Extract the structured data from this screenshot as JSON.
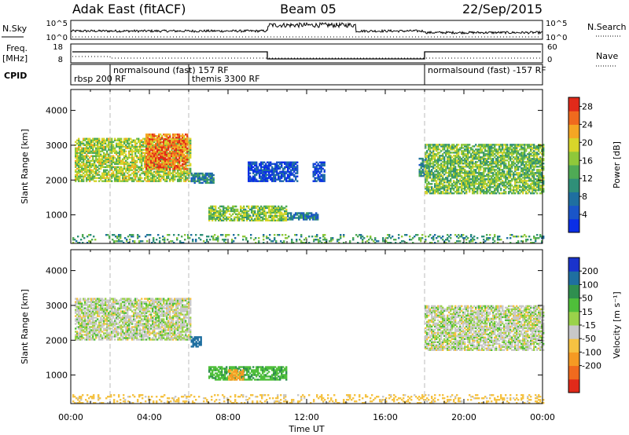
{
  "header": {
    "title": "Adak East (fitACF)",
    "beam": "Beam 05",
    "date": "22/Sep/2015"
  },
  "top_panels": {
    "left_labels": {
      "nsky": "N.Sky",
      "freq": "Freq.",
      "freq_unit": "[MHz]",
      "cpid": "CPID"
    },
    "right_labels": {
      "nsearch": "N.Search",
      "nave": "Nave"
    },
    "noise_ticks_left": [
      "10^5",
      "10^0"
    ],
    "noise_ticks_right": [
      "10^5",
      "10^0"
    ],
    "freq_ticks": [
      "18",
      "8"
    ],
    "nave_ticks": [
      "60",
      "0"
    ],
    "cpid_labels": [
      {
        "text": "rbsp 200 RF",
        "t": 0.0
      },
      {
        "text": "normalsound (fast) 157 RF",
        "t": 2.0
      },
      {
        "text": "themis 3300 RF",
        "t": 6.0
      },
      {
        "text": "normalsound (fast) -157 RF",
        "t": 18.0
      }
    ]
  },
  "chart_data": [
    {
      "type": "heatmap",
      "name": "power",
      "xlabel": "Time UT",
      "ylabel": "Slant Range [km]",
      "xlim": [
        0,
        24
      ],
      "ylim": [
        180,
        4600
      ],
      "x_ticks": [
        "00:00",
        "04:00",
        "08:00",
        "12:00",
        "16:00",
        "20:00",
        "00:00"
      ],
      "y_ticks": [
        1000,
        2000,
        3000,
        4000
      ],
      "colorbar": {
        "label": "Power [dB]",
        "ticks": [
          4,
          8,
          12,
          16,
          20,
          24,
          28
        ],
        "range": [
          0,
          30
        ],
        "colors": [
          "#0a2ee6",
          "#1a55c8",
          "#1f6fa0",
          "#2f8f78",
          "#4faa55",
          "#8fc83a",
          "#d8d52a",
          "#f5a623",
          "#f06a1e",
          "#e02a1a"
        ]
      },
      "regions": [
        {
          "t0": 0.2,
          "t1": 6.1,
          "r0": 1950,
          "r1": 3200,
          "level": 17
        },
        {
          "t0": 3.8,
          "t1": 5.9,
          "r0": 2300,
          "r1": 3300,
          "level": 25
        },
        {
          "t0": 6.1,
          "t1": 7.3,
          "r0": 1900,
          "r1": 2200,
          "level": 8
        },
        {
          "t0": 7.0,
          "t1": 11.0,
          "r0": 820,
          "r1": 1250,
          "level": 16
        },
        {
          "t0": 11.0,
          "t1": 12.6,
          "r0": 850,
          "r1": 1050,
          "level": 8
        },
        {
          "t0": 9.0,
          "t1": 11.5,
          "r0": 1950,
          "r1": 2500,
          "level": 4
        },
        {
          "t0": 12.3,
          "t1": 12.9,
          "r0": 1950,
          "r1": 2500,
          "level": 4
        },
        {
          "t0": 17.7,
          "t1": 18.2,
          "r0": 2100,
          "r1": 2600,
          "level": 10
        },
        {
          "t0": 18.0,
          "t1": 24.0,
          "r0": 1600,
          "r1": 3000,
          "level": 15
        },
        {
          "t0": 0.0,
          "t1": 24.0,
          "r0": 180,
          "r1": 420,
          "level": 12
        }
      ]
    },
    {
      "type": "heatmap",
      "name": "velocity",
      "xlabel": "Time UT",
      "ylabel": "Slant Range [km]",
      "xlim": [
        0,
        24
      ],
      "ylim": [
        180,
        4600
      ],
      "x_ticks": [
        "00:00",
        "04:00",
        "08:00",
        "12:00",
        "16:00",
        "20:00",
        "00:00"
      ],
      "y_ticks": [
        1000,
        2000,
        3000,
        4000
      ],
      "colorbar": {
        "label": "Velocity [m s⁻¹]",
        "ticks": [
          200,
          100,
          50,
          15,
          -15,
          -50,
          -100,
          -200
        ],
        "colors": [
          "#1a33cc",
          "#1f6fa0",
          "#2f8f4f",
          "#4fbf3a",
          "#9ad24a",
          "#c8c8c8",
          "#f5c242",
          "#f59a23",
          "#f06a1e",
          "#e02a1a"
        ]
      },
      "regions": [
        {
          "t0": 0.2,
          "t1": 6.1,
          "r0": 2000,
          "r1": 3200,
          "level": 0
        },
        {
          "t0": 6.1,
          "t1": 6.6,
          "r0": 1800,
          "r1": 2100,
          "level": 180
        },
        {
          "t0": 7.0,
          "t1": 11.0,
          "r0": 850,
          "r1": 1250,
          "level": 40
        },
        {
          "t0": 8.0,
          "t1": 8.8,
          "r0": 850,
          "r1": 1150,
          "level": -60
        },
        {
          "t0": 18.0,
          "t1": 24.0,
          "r0": 1700,
          "r1": 3000,
          "level": 0
        },
        {
          "t0": 0.0,
          "t1": 24.0,
          "r0": 180,
          "r1": 420,
          "level": -30
        }
      ]
    }
  ]
}
